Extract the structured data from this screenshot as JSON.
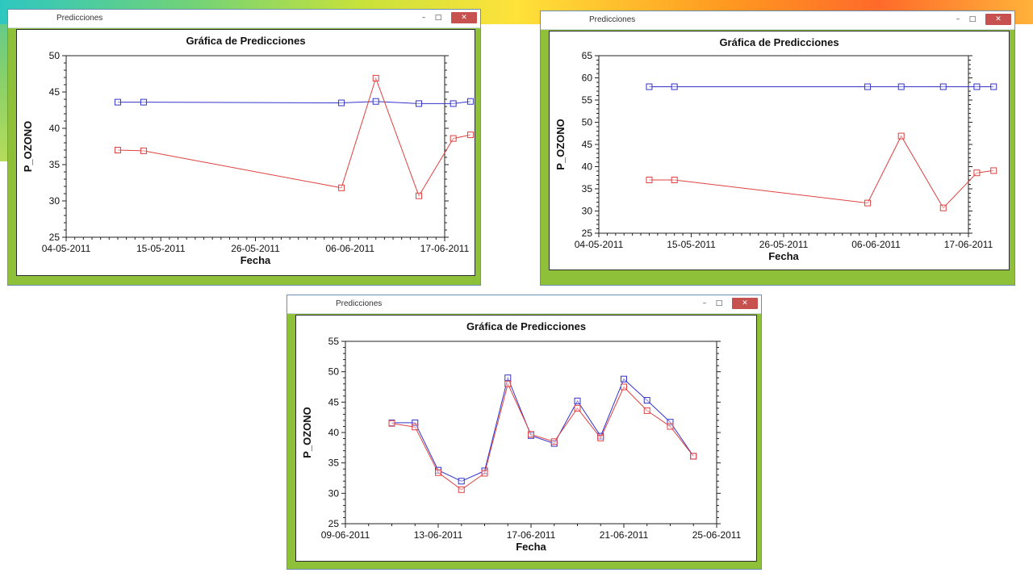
{
  "windows": [
    {
      "title": "Predicciones",
      "buttons": {
        "minimize": "–",
        "maximize": "□",
        "close": "✕"
      },
      "chart_data": {
        "type": "line",
        "title": "Gráfica de Predicciones",
        "xlabel": "Fecha",
        "ylabel": "P_OZONO",
        "x_tick_labels": [
          "04-05-2011",
          "15-05-2011",
          "26-05-2011",
          "06-06-2011",
          "17-06-2011"
        ],
        "y_tick_labels": [
          "25",
          "30",
          "35",
          "40",
          "45",
          "50"
        ],
        "ylim": [
          25,
          50
        ],
        "x": [
          "2011-05-10",
          "2011-05-13",
          "2011-06-05",
          "2011-06-09",
          "2011-06-14",
          "2011-06-18",
          "2011-06-20"
        ],
        "series": [
          {
            "color": "#3333cc",
            "marker": "square",
            "values": [
              43.6,
              43.6,
              43.5,
              43.7,
              43.4,
              43.4,
              43.7
            ]
          },
          {
            "color": "#e04040",
            "marker": "square",
            "values": [
              37.0,
              36.9,
              31.8,
              46.9,
              30.7,
              38.6,
              39.1
            ]
          }
        ],
        "grid": false
      }
    },
    {
      "title": "Predicciones",
      "buttons": {
        "minimize": "–",
        "maximize": "□",
        "close": "✕"
      },
      "chart_data": {
        "type": "line",
        "title": "Gráfica de Predicciones",
        "xlabel": "Fecha",
        "ylabel": "P_OZONO",
        "x_tick_labels": [
          "04-05-2011",
          "15-05-2011",
          "26-05-2011",
          "06-06-2011",
          "17-06-2011"
        ],
        "y_tick_labels": [
          "25",
          "30",
          "35",
          "40",
          "45",
          "50",
          "55",
          "60",
          "65"
        ],
        "ylim": [
          25,
          65
        ],
        "x": [
          "2011-05-10",
          "2011-05-13",
          "2011-06-05",
          "2011-06-09",
          "2011-06-14",
          "2011-06-18",
          "2011-06-20"
        ],
        "series": [
          {
            "color": "#3333cc",
            "marker": "square",
            "values": [
              58.0,
              58.0,
              58.0,
              58.0,
              58.0,
              58.0,
              58.0
            ]
          },
          {
            "color": "#e04040",
            "marker": "square",
            "values": [
              37.0,
              37.0,
              31.8,
              46.9,
              30.7,
              38.6,
              39.1
            ]
          }
        ],
        "grid": false
      }
    },
    {
      "title": "Predicciones",
      "buttons": {
        "minimize": "–",
        "maximize": "□",
        "close": "✕"
      },
      "chart_data": {
        "type": "line",
        "title": "Gráfica de Predicciones",
        "xlabel": "Fecha",
        "ylabel": "P_OZONO",
        "x_tick_labels": [
          "09-06-2011",
          "13-06-2011",
          "17-06-2011",
          "21-06-2011",
          "25-06-2011"
        ],
        "y_tick_labels": [
          "25",
          "30",
          "35",
          "40",
          "45",
          "50",
          "55"
        ],
        "ylim": [
          25,
          55
        ],
        "x": [
          "2011-06-11",
          "2011-06-12",
          "2011-06-13",
          "2011-06-14",
          "2011-06-15",
          "2011-06-16",
          "2011-06-17",
          "2011-06-18",
          "2011-06-19",
          "2011-06-20",
          "2011-06-21",
          "2011-06-22",
          "2011-06-23",
          "2011-06-24"
        ],
        "series": [
          {
            "color": "#3333cc",
            "marker": "square",
            "values": [
              41.6,
              41.6,
              33.8,
              32.0,
              33.7,
              49.0,
              39.5,
              38.2,
              45.2,
              39.4,
              48.8,
              45.3,
              41.7,
              36.1
            ]
          },
          {
            "color": "#e04040",
            "marker": "square",
            "values": [
              41.5,
              40.9,
              33.4,
              30.6,
              33.3,
              48.0,
              39.7,
              38.5,
              44.0,
              39.1,
              47.5,
              43.6,
              41.0,
              36.1
            ]
          }
        ],
        "grid": false
      }
    }
  ]
}
